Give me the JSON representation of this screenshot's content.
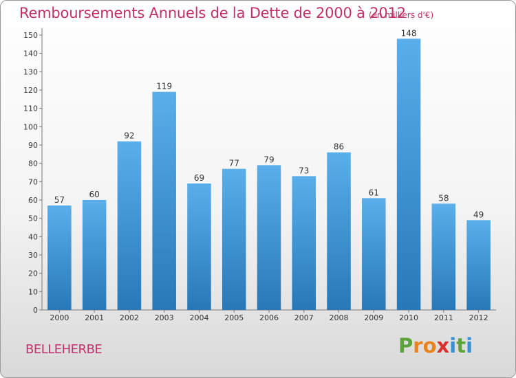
{
  "header": {
    "title": "Remboursements Annuels de la Dette de 2000 à 2012",
    "unit": "(en milliers d'€)"
  },
  "footer": {
    "town": "BELLEHERBE",
    "logo": [
      "P",
      "r",
      "o",
      "x",
      "i",
      "t",
      "i"
    ]
  },
  "colors": {
    "title": "#c0306a",
    "bar_top": "#5aaeea",
    "bar_bottom": "#2778b8",
    "logo_letters": [
      "#5aa43a",
      "#e8831f",
      "#e8831f",
      "#d8302f",
      "#3a8fd0",
      "#5aa43a",
      "#3a8fd0"
    ]
  },
  "chart_data": {
    "type": "bar",
    "title": "Remboursements Annuels de la Dette de 2000 à 2012",
    "categories": [
      "2000",
      "2001",
      "2002",
      "2003",
      "2004",
      "2005",
      "2006",
      "2007",
      "2008",
      "2009",
      "2010",
      "2011",
      "2012"
    ],
    "values": [
      57,
      60,
      92,
      119,
      69,
      77,
      79,
      73,
      86,
      61,
      148,
      58,
      49
    ],
    "yticks": [
      0,
      10,
      20,
      30,
      40,
      50,
      60,
      70,
      80,
      90,
      100,
      110,
      120,
      130,
      140,
      150
    ],
    "ylim": [
      0,
      150
    ],
    "grid": false,
    "legend": "none"
  }
}
